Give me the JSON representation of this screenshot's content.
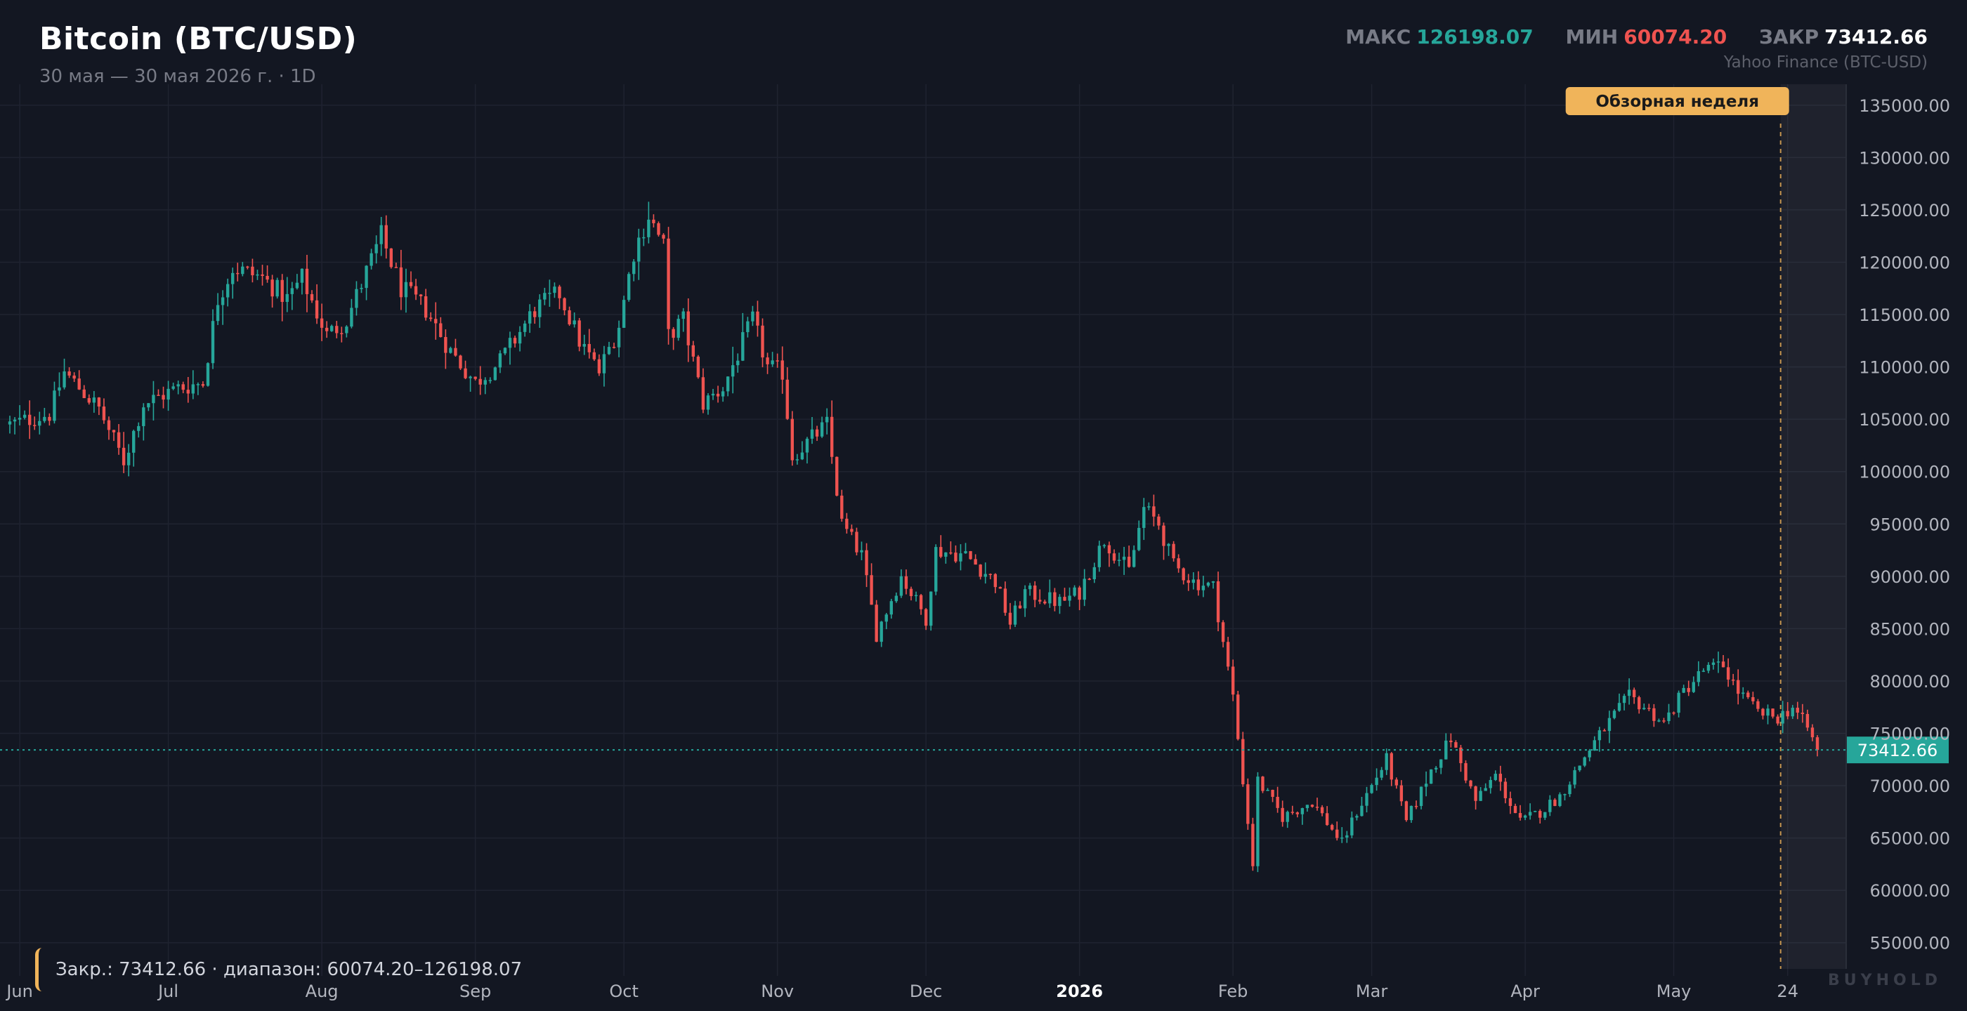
{
  "header": {
    "title": "Bitcoin (BTC/USD)",
    "subtitle": "30 мая — 30 мая 2026 г. · 1D",
    "source": "Yahoo Finance (BTC-USD)",
    "stats": {
      "max_label": "МАКС",
      "max_value": "126198.07",
      "min_label": "МИН",
      "min_value": "60074.20",
      "close_label": "ЗАКР",
      "close_value": "73412.66"
    }
  },
  "legend": {
    "text": "Закр.: 73412.66 · диапазон: 60074.20–126198.07"
  },
  "watermark": "BUYHOLD",
  "colors": {
    "background": "#131722",
    "up": "#26a69a",
    "down": "#ef5350",
    "grid": "#1f2330",
    "axis_text": "#b2b5be",
    "highlight": "#f0b45a"
  },
  "chart_data": {
    "type": "candlestick",
    "interval": "1D",
    "x_range": [
      "2025-05-30",
      "2026-05-30"
    ],
    "y_range": [
      52500,
      137000
    ],
    "y_ticks": [
      55000,
      60000,
      65000,
      70000,
      75000,
      80000,
      85000,
      90000,
      95000,
      100000,
      105000,
      110000,
      115000,
      120000,
      125000,
      130000,
      135000
    ],
    "y_tick_labels": [
      "55000.00",
      "60000.00",
      "65000.00",
      "70000.00",
      "75000.00",
      "80000.00",
      "85000.00",
      "90000.00",
      "95000.00",
      "100000.00",
      "105000.00",
      "110000.00",
      "115000.00",
      "120000.00",
      "125000.00",
      "130000.00",
      "135000.00"
    ],
    "x_ticks": [
      {
        "date": "2025-06-01",
        "label": "Jun",
        "bold": false
      },
      {
        "date": "2025-07-01",
        "label": "Jul",
        "bold": false
      },
      {
        "date": "2025-08-01",
        "label": "Aug",
        "bold": false
      },
      {
        "date": "2025-09-01",
        "label": "Sep",
        "bold": false
      },
      {
        "date": "2025-10-01",
        "label": "Oct",
        "bold": false
      },
      {
        "date": "2025-11-01",
        "label": "Nov",
        "bold": false
      },
      {
        "date": "2025-12-01",
        "label": "Dec",
        "bold": false
      },
      {
        "date": "2026-01-01",
        "label": "2026",
        "bold": true
      },
      {
        "date": "2026-02-01",
        "label": "Feb",
        "bold": false
      },
      {
        "date": "2026-03-01",
        "label": "Mar",
        "bold": false
      },
      {
        "date": "2026-04-01",
        "label": "Apr",
        "bold": false
      },
      {
        "date": "2026-05-01",
        "label": "May",
        "bold": false
      },
      {
        "date": "2026-05-24",
        "label": "24",
        "bold": false
      }
    ],
    "highlight": {
      "label": "Обзорная неделя",
      "start": "2026-05-24",
      "end": "2026-05-30"
    },
    "last_price": 73412.66,
    "last_price_label": "73412.66",
    "stats": {
      "max": 126198.07,
      "min": 60074.2,
      "close": 73412.66
    },
    "close_series": [
      {
        "date": "2025-05-30",
        "close": 104500
      },
      {
        "date": "2025-06-07",
        "close": 105500
      },
      {
        "date": "2025-06-10",
        "close": 109500
      },
      {
        "date": "2025-06-17",
        "close": 106000
      },
      {
        "date": "2025-06-22",
        "close": 101000
      },
      {
        "date": "2025-06-26",
        "close": 106500
      },
      {
        "date": "2025-07-03",
        "close": 108000
      },
      {
        "date": "2025-07-08",
        "close": 108500
      },
      {
        "date": "2025-07-11",
        "close": 116500
      },
      {
        "date": "2025-07-14",
        "close": 119500
      },
      {
        "date": "2025-07-20",
        "close": 118500
      },
      {
        "date": "2025-07-25",
        "close": 116500
      },
      {
        "date": "2025-07-28",
        "close": 118500
      },
      {
        "date": "2025-08-02",
        "close": 113000
      },
      {
        "date": "2025-08-06",
        "close": 114500
      },
      {
        "date": "2025-08-13",
        "close": 122500
      },
      {
        "date": "2025-08-17",
        "close": 117500
      },
      {
        "date": "2025-08-22",
        "close": 115500
      },
      {
        "date": "2025-08-27",
        "close": 111500
      },
      {
        "date": "2025-09-01",
        "close": 108500
      },
      {
        "date": "2025-09-06",
        "close": 110500
      },
      {
        "date": "2025-09-13",
        "close": 115500
      },
      {
        "date": "2025-09-18",
        "close": 117000
      },
      {
        "date": "2025-09-22",
        "close": 112500
      },
      {
        "date": "2025-09-26",
        "close": 109500
      },
      {
        "date": "2025-09-30",
        "close": 114000
      },
      {
        "date": "2025-10-03",
        "close": 121000
      },
      {
        "date": "2025-10-06",
        "close": 124500
      },
      {
        "date": "2025-10-09",
        "close": 121500
      },
      {
        "date": "2025-10-10",
        "close": 113000
      },
      {
        "date": "2025-10-13",
        "close": 114500
      },
      {
        "date": "2025-10-17",
        "close": 106500
      },
      {
        "date": "2025-10-21",
        "close": 108000
      },
      {
        "date": "2025-10-27",
        "close": 114500
      },
      {
        "date": "2025-10-30",
        "close": 110000
      },
      {
        "date": "2025-11-02",
        "close": 109500
      },
      {
        "date": "2025-11-04",
        "close": 101500
      },
      {
        "date": "2025-11-11",
        "close": 104500
      },
      {
        "date": "2025-11-14",
        "close": 95000
      },
      {
        "date": "2025-11-18",
        "close": 92000
      },
      {
        "date": "2025-11-21",
        "close": 84500
      },
      {
        "date": "2025-11-26",
        "close": 90000
      },
      {
        "date": "2025-12-01",
        "close": 86000
      },
      {
        "date": "2025-12-03",
        "close": 92500
      },
      {
        "date": "2025-12-09",
        "close": 92000
      },
      {
        "date": "2025-12-15",
        "close": 89500
      },
      {
        "date": "2025-12-18",
        "close": 85500
      },
      {
        "date": "2025-12-21",
        "close": 88500
      },
      {
        "date": "2025-12-28",
        "close": 87500
      },
      {
        "date": "2026-01-01",
        "close": 88500
      },
      {
        "date": "2026-01-06",
        "close": 93500
      },
      {
        "date": "2026-01-11",
        "close": 90500
      },
      {
        "date": "2026-01-14",
        "close": 96500
      },
      {
        "date": "2026-01-17",
        "close": 95000
      },
      {
        "date": "2026-01-20",
        "close": 91000
      },
      {
        "date": "2026-01-24",
        "close": 89500
      },
      {
        "date": "2026-01-28",
        "close": 89000
      },
      {
        "date": "2026-02-01",
        "close": 78500
      },
      {
        "date": "2026-02-05",
        "close": 62500
      },
      {
        "date": "2026-02-06",
        "close": 70500
      },
      {
        "date": "2026-02-11",
        "close": 67000
      },
      {
        "date": "2026-02-17",
        "close": 68500
      },
      {
        "date": "2026-02-23",
        "close": 64500
      },
      {
        "date": "2026-02-26",
        "close": 67500
      },
      {
        "date": "2026-03-04",
        "close": 72500
      },
      {
        "date": "2026-03-08",
        "close": 66500
      },
      {
        "date": "2026-03-13",
        "close": 71500
      },
      {
        "date": "2026-03-17",
        "close": 74500
      },
      {
        "date": "2026-03-22",
        "close": 68500
      },
      {
        "date": "2026-03-26",
        "close": 71000
      },
      {
        "date": "2026-03-31",
        "close": 66500
      },
      {
        "date": "2026-04-04",
        "close": 67500
      },
      {
        "date": "2026-04-08",
        "close": 69000
      },
      {
        "date": "2026-04-14",
        "close": 73500
      },
      {
        "date": "2026-04-17",
        "close": 75500
      },
      {
        "date": "2026-04-22",
        "close": 78500
      },
      {
        "date": "2026-04-25",
        "close": 77500
      },
      {
        "date": "2026-04-29",
        "close": 76000
      },
      {
        "date": "2026-05-03",
        "close": 79000
      },
      {
        "date": "2026-05-07",
        "close": 81000
      },
      {
        "date": "2026-05-11",
        "close": 81500
      },
      {
        "date": "2026-05-14",
        "close": 79000
      },
      {
        "date": "2026-05-18",
        "close": 77000
      },
      {
        "date": "2026-05-22",
        "close": 76500
      },
      {
        "date": "2026-05-25",
        "close": 77500
      },
      {
        "date": "2026-05-28",
        "close": 75500
      },
      {
        "date": "2026-05-30",
        "close": 73412.66
      }
    ]
  }
}
